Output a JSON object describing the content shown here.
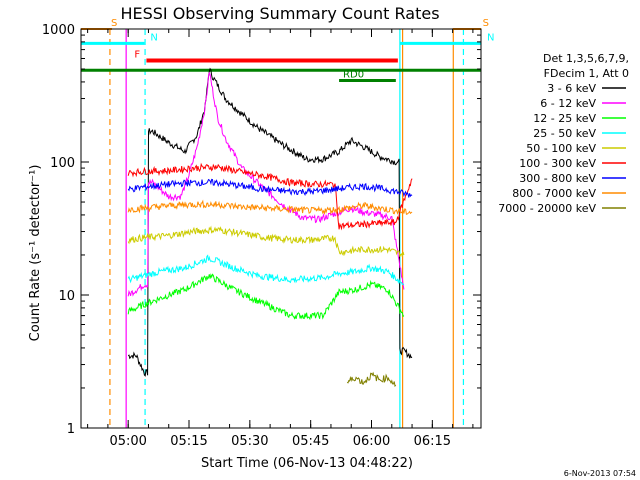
{
  "chart_data": {
    "type": "line",
    "title": "HESSI Observing Summary Count Rates",
    "xlabel": "Start Time (06-Nov-13 04:48:22)",
    "ylabel": "Count Rate (s⁻¹ detector⁻¹)",
    "y_scale": "log",
    "ylim": [
      1,
      1000
    ],
    "xlim": [
      "04:48:22",
      "06:27:00"
    ],
    "x_ticks": [
      "05:00",
      "05:15",
      "05:30",
      "05:45",
      "06:00",
      "06:15"
    ],
    "y_ticks": [
      "1",
      "10",
      "100",
      "1000"
    ],
    "grid": false,
    "legend_position": "right",
    "legend_header": [
      "Det 1,3,5,6,7,9,",
      "FDecim 1, Att 0"
    ],
    "footer_date": "6-Nov-2013 07:54",
    "colors": {
      "s_bar": "#ff8c00",
      "n_bar": "#00ffff",
      "f_bar": "#ff0000",
      "rd_bar": "#008000",
      "axis": "#000000"
    },
    "flags": [
      {
        "label": "S",
        "start": "04:48:22",
        "end": "04:56:00",
        "y": 1000,
        "color": "#ff8c00",
        "lw": 2
      },
      {
        "label": "S",
        "start": "06:20:00",
        "end": "06:27:00",
        "y": 1000,
        "color": "#ff8c00",
        "lw": 2
      },
      {
        "label": "N",
        "start": "04:48:22",
        "end": "05:04:00",
        "y": 780,
        "color": "#00ffff",
        "lw": 3
      },
      {
        "label": "N",
        "start": "06:07:00",
        "end": "06:27:00",
        "y": 780,
        "color": "#00ffff",
        "lw": 3
      },
      {
        "label": "F",
        "start": "05:04:30",
        "end": "06:06:30",
        "y": 580,
        "color": "#ff0000",
        "lw": 4
      },
      {
        "label": "",
        "start": "04:48:22",
        "end": "06:27:00",
        "y": 490,
        "color": "#008000",
        "lw": 3
      },
      {
        "label": "RD0",
        "start": "05:52:00",
        "end": "06:06:00",
        "y": 410,
        "color": "#008000",
        "lw": 3
      }
    ],
    "vlines": [
      {
        "t": "04:55:30",
        "color": "#ff8c00",
        "dash": true
      },
      {
        "t": "04:59:30",
        "color": "#ff00ff",
        "dash": false
      },
      {
        "t": "05:04:10",
        "color": "#00ffff",
        "dash": true
      },
      {
        "t": "06:07:00",
        "color": "#00ffff",
        "dash": false
      },
      {
        "t": "06:07:40",
        "color": "#ff8c00",
        "dash": false
      },
      {
        "t": "06:20:10",
        "color": "#ff8c00",
        "dash": false
      },
      {
        "t": "06:22:40",
        "color": "#00ffff",
        "dash": true
      }
    ],
    "series": [
      {
        "name": "3 - 6 keV",
        "color": "#000000",
        "x": [
          "05:00:00",
          "05:02:00",
          "05:04:00",
          "05:06:00",
          "05:10:00",
          "05:14:00",
          "05:17:00",
          "05:19:00",
          "05:20:00",
          "05:21:00",
          "05:24:00",
          "05:28:00",
          "05:32:00",
          "05:38:00",
          "05:44:00",
          "05:48:00",
          "05:52:00",
          "05:55:00",
          "05:58:00",
          "06:02:00",
          "06:06:00",
          "06:08:00",
          "06:10:00"
        ],
        "y": [
          3.5,
          3.5,
          2.6,
          170,
          140,
          120,
          160,
          260,
          500,
          430,
          300,
          230,
          180,
          135,
          105,
          105,
          120,
          145,
          130,
          110,
          100,
          3.8,
          3.4
        ]
      },
      {
        "name": "6 - 12 keV",
        "color": "#ff00ff",
        "x": [
          "05:00:00",
          "05:04:00",
          "05:06:00",
          "05:10:00",
          "05:13:00",
          "05:15:00",
          "05:17:00",
          "05:19:00",
          "05:20:00",
          "05:22:00",
          "05:24:00",
          "05:28:00",
          "05:33:00",
          "05:38:00",
          "05:43:00",
          "05:47:00",
          "05:50:00",
          "05:55:00",
          "05:58:00",
          "06:02:00",
          "06:05:00",
          "06:08:00"
        ],
        "y": [
          10,
          12,
          70,
          55,
          55,
          80,
          130,
          260,
          480,
          220,
          150,
          90,
          65,
          48,
          38,
          37,
          40,
          45,
          42,
          40,
          38,
          11
        ]
      },
      {
        "name": "12 - 25 keV",
        "color": "#00ff00",
        "x": [
          "05:00:00",
          "05:04:00",
          "05:08:00",
          "05:14:00",
          "05:20:00",
          "05:26:00",
          "05:32:00",
          "05:40:00",
          "05:48:00",
          "05:52:00",
          "05:56:00",
          "06:00:00",
          "06:04:00",
          "06:08:00"
        ],
        "y": [
          7.5,
          8.5,
          9.5,
          11,
          14,
          11,
          9,
          7,
          7,
          10.5,
          11,
          12,
          11,
          7
        ]
      },
      {
        "name": "25 - 50 keV",
        "color": "#00ffff",
        "x": [
          "05:00:00",
          "05:04:00",
          "05:08:00",
          "05:14:00",
          "05:20:00",
          "05:26:00",
          "05:32:00",
          "05:40:00",
          "05:48:00",
          "05:52:00",
          "05:56:00",
          "06:00:00",
          "06:04:00",
          "06:08:00"
        ],
        "y": [
          13,
          14,
          15,
          16,
          19,
          16,
          14,
          13,
          13.5,
          14.5,
          15,
          16,
          15,
          12
        ]
      },
      {
        "name": "50 - 100 keV",
        "color": "#cccc00",
        "x": [
          "05:00:00",
          "05:04:00",
          "05:10:00",
          "05:16:00",
          "05:22:00",
          "05:28:00",
          "05:34:00",
          "05:40:00",
          "05:46:00",
          "05:51:00",
          "05:52:00",
          "05:58:00",
          "06:04:00",
          "06:08:00"
        ],
        "y": [
          26,
          27,
          28,
          30,
          31,
          29,
          27,
          26,
          26,
          27,
          21,
          22,
          22,
          20
        ]
      },
      {
        "name": "100 - 300 keV",
        "color": "#ff0000",
        "x": [
          "05:00:00",
          "05:04:00",
          "05:10:00",
          "05:16:00",
          "05:22:00",
          "05:28:00",
          "05:34:00",
          "05:40:00",
          "05:46:00",
          "05:51:00",
          "05:52:00",
          "05:58:00",
          "06:04:00",
          "06:06:00",
          "06:10:00"
        ],
        "y": [
          83,
          85,
          86,
          90,
          92,
          84,
          78,
          70,
          68,
          68,
          33,
          34,
          35,
          35,
          75
        ]
      },
      {
        "name": "300 - 800 keV",
        "color": "#0000ff",
        "x": [
          "05:00:00",
          "05:04:00",
          "05:10:00",
          "05:16:00",
          "05:22:00",
          "05:28:00",
          "05:34:00",
          "05:40:00",
          "05:46:00",
          "05:52:00",
          "05:58:00",
          "06:04:00",
          "06:08:00",
          "06:10:00"
        ],
        "y": [
          62,
          65,
          68,
          70,
          70,
          66,
          62,
          60,
          60,
          63,
          66,
          62,
          58,
          56
        ]
      },
      {
        "name": "800 - 7000 keV",
        "color": "#ff8c00",
        "x": [
          "05:00:00",
          "05:04:00",
          "05:10:00",
          "05:16:00",
          "05:22:00",
          "05:28:00",
          "05:34:00",
          "05:40:00",
          "05:46:00",
          "05:52:00",
          "05:58:00",
          "06:04:00",
          "06:08:00",
          "06:10:00"
        ],
        "y": [
          44,
          45,
          47,
          48,
          48,
          46,
          45,
          44,
          43,
          44,
          47,
          44,
          42,
          42
        ]
      },
      {
        "name": "7000 - 20000 keV",
        "color": "#808000",
        "x": [
          "05:54:00",
          "05:56:00",
          "05:58:00",
          "06:00:00",
          "06:02:00",
          "06:04:00",
          "06:06:00"
        ],
        "y": [
          2.2,
          2.4,
          2.2,
          2.5,
          2.3,
          2.4,
          2.1
        ]
      }
    ]
  }
}
